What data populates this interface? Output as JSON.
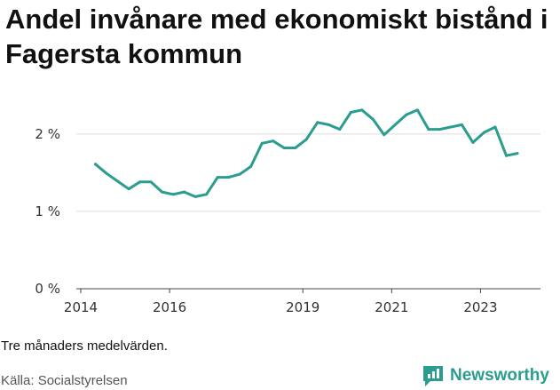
{
  "title": "Andel invånare med ekonomiskt bistånd i Fagersta kommun",
  "note": "Tre månaders medelvärden.",
  "source": "Källa: Socialstyrelsen",
  "brand": {
    "name": "Newsworthy",
    "icon": "newsworthy-logo-icon",
    "color": "#2a9d8f"
  },
  "chart_data": {
    "type": "line",
    "title": "Andel invånare med ekonomiskt bistånd i Fagersta kommun",
    "xlabel": "",
    "ylabel": "",
    "ylim": [
      0,
      2.4
    ],
    "xlim": [
      2013.9,
      2024.35
    ],
    "y_ticks": [
      0,
      1,
      2
    ],
    "y_tick_labels": [
      "0 %",
      "1 %",
      "2 %"
    ],
    "x_ticks": [
      2014,
      2016,
      2019,
      2021,
      2023
    ],
    "x_tick_labels": [
      "2014",
      "2016",
      "2019",
      "2021",
      "2023"
    ],
    "grid": true,
    "legend": "none",
    "color": "#2a9d8f",
    "series": [
      {
        "x": [
          2014.33,
          2014.58,
          2014.83,
          2015.08,
          2015.33,
          2015.58,
          2015.83,
          2016.08,
          2016.33,
          2016.58,
          2016.83,
          2017.08,
          2017.33,
          2017.58,
          2017.83,
          2018.08,
          2018.33,
          2018.58,
          2018.83,
          2019.08,
          2019.33,
          2019.58,
          2019.83,
          2020.08,
          2020.33,
          2020.58,
          2020.83,
          2021.08,
          2021.33,
          2021.58,
          2021.83,
          2022.08,
          2022.33,
          2022.58,
          2022.83,
          2023.08,
          2023.33,
          2023.58,
          2023.83
        ],
        "values": [
          1.61,
          1.49,
          1.39,
          1.29,
          1.38,
          1.38,
          1.25,
          1.22,
          1.25,
          1.19,
          1.22,
          1.44,
          1.44,
          1.48,
          1.58,
          1.88,
          1.91,
          1.82,
          1.82,
          1.93,
          2.15,
          2.12,
          2.06,
          2.28,
          2.31,
          2.19,
          1.99,
          2.12,
          2.25,
          2.31,
          2.06,
          2.06,
          2.09,
          2.12,
          1.89,
          2.02,
          2.09,
          1.72,
          1.75
        ]
      }
    ]
  }
}
